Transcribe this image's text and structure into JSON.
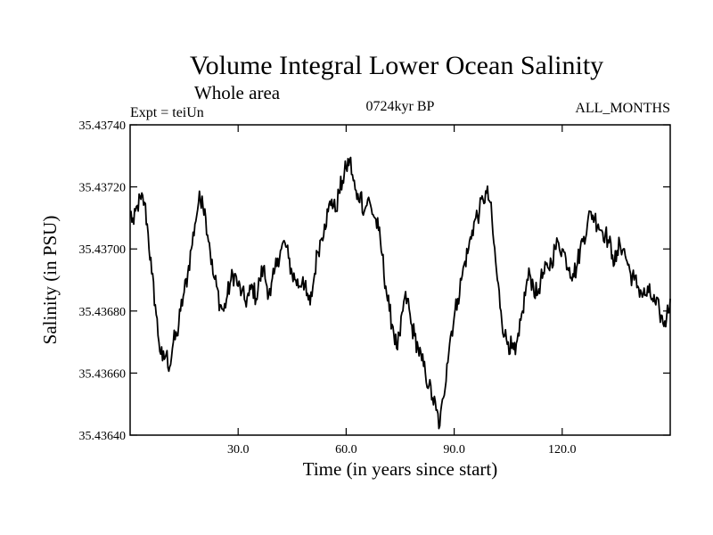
{
  "chart_data": {
    "type": "line",
    "title": "Volume Integral Lower Ocean Salinity",
    "subtitle": "Whole area",
    "left_label": "Expt = teiUn",
    "center_label": "0724kyr BP",
    "right_label": "ALL_MONTHS",
    "xlabel": "Time (in years since start)",
    "ylabel": "Salinity (in PSU)",
    "xlim": [
      0,
      150
    ],
    "ylim": [
      35.4364,
      35.4374
    ],
    "xticks": [
      30,
      60,
      90,
      120
    ],
    "xtick_labels": [
      "30.0",
      "60.0",
      "90.0",
      "120.0"
    ],
    "yticks": [
      35.4364,
      35.4366,
      35.4368,
      35.437,
      35.4372,
      35.4374
    ],
    "ytick_labels": [
      "35.43640",
      "35.43660",
      "35.43680",
      "35.43700",
      "35.43720",
      "35.43740"
    ],
    "grid": false,
    "series": [
      {
        "name": "salinity",
        "x": [
          0,
          1,
          2,
          3,
          4,
          5,
          6,
          7,
          8,
          9,
          10,
          11,
          12,
          13,
          14,
          15,
          16,
          17,
          18,
          19,
          20,
          21,
          22,
          23,
          24,
          25,
          26,
          27,
          28,
          29,
          30,
          31,
          32,
          33,
          34,
          35,
          36,
          37,
          38,
          39,
          40,
          41,
          42,
          43,
          44,
          45,
          46,
          47,
          48,
          49,
          50,
          51,
          52,
          53,
          54,
          55,
          56,
          57,
          58,
          59,
          60,
          61,
          62,
          63,
          64,
          65,
          66,
          67,
          68,
          69,
          70,
          71,
          72,
          73,
          74,
          75,
          76,
          77,
          78,
          79,
          80,
          81,
          82,
          83,
          84,
          85,
          86,
          87,
          88,
          89,
          90,
          91,
          92,
          93,
          94,
          95,
          96,
          97,
          98,
          99,
          100,
          101,
          102,
          103,
          104,
          105,
          106,
          107,
          108,
          109,
          110,
          111,
          112,
          113,
          114,
          115,
          116,
          117,
          118,
          119,
          120,
          121,
          122,
          123,
          124,
          125,
          126,
          127,
          128,
          129,
          130,
          131,
          132,
          133,
          134,
          135,
          136,
          137,
          138,
          139,
          140,
          141,
          142,
          143,
          144,
          145,
          146,
          147,
          148,
          149,
          150
        ],
        "values": [
          35.43712,
          35.43708,
          35.43714,
          35.43716,
          35.43715,
          35.43705,
          35.43692,
          35.43682,
          35.4367,
          35.43664,
          35.43666,
          35.43662,
          35.4367,
          35.43672,
          35.4368,
          35.43686,
          35.43692,
          35.437,
          35.43708,
          35.43715,
          35.43717,
          35.4371,
          35.43702,
          35.43692,
          35.43688,
          35.43682,
          35.4368,
          35.43685,
          35.4369,
          35.43692,
          35.43688,
          35.43686,
          35.43683,
          35.43685,
          35.43688,
          35.43684,
          35.4369,
          35.43694,
          35.43688,
          35.43685,
          35.43692,
          35.43697,
          35.437,
          35.43702,
          35.43697,
          35.43692,
          35.4369,
          35.43688,
          35.43691,
          35.43685,
          35.43682,
          35.4369,
          35.43699,
          35.43703,
          35.43708,
          35.43712,
          35.43716,
          35.43712,
          35.43718,
          35.43722,
          35.43726,
          35.43729,
          35.43722,
          35.43716,
          35.43718,
          35.43712,
          35.43716,
          35.43713,
          35.4371,
          35.43706,
          35.43698,
          35.43688,
          35.4368,
          35.43675,
          35.43668,
          35.43672,
          35.43683,
          35.43684,
          35.43676,
          35.43672,
          35.43668,
          35.43664,
          35.4366,
          35.43656,
          35.43652,
          35.43648,
          35.43643,
          35.43652,
          35.43663,
          35.43672,
          35.43678,
          35.43684,
          35.4369,
          35.43696,
          35.437,
          35.43706,
          35.4371,
          35.43712,
          35.43716,
          35.43718,
          35.43715,
          35.43702,
          35.4369,
          35.4368,
          35.43672,
          35.4367,
          35.43668,
          35.43666,
          35.43672,
          35.4368,
          35.43688,
          35.43692,
          35.43688,
          35.43685,
          35.4369,
          35.43692,
          35.43694,
          35.43696,
          35.437,
          35.43702,
          35.437,
          35.43697,
          35.43694,
          35.43692,
          35.43694,
          35.437,
          35.43704,
          35.43708,
          35.43712,
          35.4371,
          35.43708,
          35.43706,
          35.43705,
          35.43702,
          35.43698,
          35.43696,
          35.43702,
          35.437,
          35.43696,
          35.43692,
          35.4369,
          35.43688,
          35.43686,
          35.43685,
          35.43686,
          35.43684,
          35.43682,
          35.4368,
          35.43676,
          35.43678,
          35.43684
        ]
      }
    ]
  }
}
